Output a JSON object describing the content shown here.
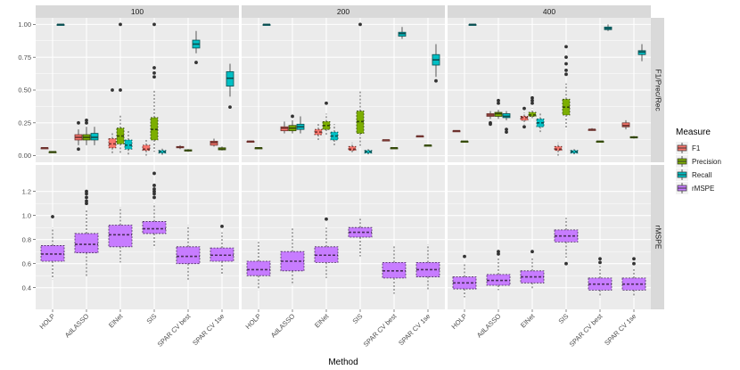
{
  "chart_data": {
    "type": "boxplot",
    "xlabel": "Method",
    "panels_x": [
      "100",
      "200",
      "400"
    ],
    "panels_y": [
      "F1/Prec/Rec",
      "rMSPE"
    ],
    "methods": [
      "HOLP",
      "AdLASSO",
      "ElNet",
      "SIS",
      "SPAR CV best",
      "SPAR CV 1se"
    ],
    "legend": {
      "title": "Measure",
      "items": [
        {
          "label": "F1",
          "color": "#F8766D"
        },
        {
          "label": "Precision",
          "color": "#7CAE00"
        },
        {
          "label": "Recall",
          "color": "#00BFC4"
        },
        {
          "label": "rMSPE",
          "color": "#C77CFF"
        }
      ]
    },
    "top_axis": {
      "ylim": [
        -0.05,
        1.05
      ],
      "ticks": [
        0.0,
        0.25,
        0.5,
        0.75,
        1.0
      ],
      "tick_labels": [
        "0.00",
        "0.25",
        "0.50",
        "0.75",
        "1.00"
      ]
    },
    "bottom_axis": {
      "ylim": [
        0.22,
        1.42
      ],
      "ticks": [
        0.4,
        0.6,
        0.8,
        1.0,
        1.2
      ],
      "tick_labels": [
        "0.4",
        "0.6",
        "0.8",
        "1.0",
        "1.2"
      ]
    },
    "top": {
      "100": {
        "F1": [
          [
            0.06,
            0.06,
            0.06,
            0.06,
            0.06,
            []
          ],
          [
            0.08,
            0.12,
            0.14,
            0.16,
            0.2,
            [
              0.25,
              0.05
            ]
          ],
          [
            0.02,
            0.06,
            0.09,
            0.13,
            0.18,
            [
              0.5
            ]
          ],
          [
            0.0,
            0.04,
            0.05,
            0.08,
            0.12,
            []
          ],
          [
            0.05,
            0.06,
            0.065,
            0.07,
            0.08,
            []
          ],
          [
            0.07,
            0.08,
            0.1,
            0.11,
            0.13,
            []
          ]
        ],
        "Precision": [
          [
            0.03,
            0.03,
            0.03,
            0.03,
            0.03,
            []
          ],
          [
            0.08,
            0.12,
            0.14,
            0.16,
            0.22,
            [
              0.27,
              0.25
            ]
          ],
          [
            0.02,
            0.09,
            0.15,
            0.21,
            0.31,
            [
              1.0,
              0.5
            ]
          ],
          [
            0.03,
            0.12,
            0.2,
            0.29,
            0.5,
            [
              1.0,
              0.67,
              0.63,
              0.6
            ]
          ],
          [
            0.03,
            0.035,
            0.04,
            0.045,
            0.05,
            []
          ],
          [
            0.04,
            0.045,
            0.05,
            0.06,
            0.07,
            []
          ]
        ],
        "Recall": [
          [
            1.0,
            1.0,
            1.0,
            1.0,
            1.0,
            []
          ],
          [
            0.08,
            0.12,
            0.14,
            0.17,
            0.22,
            []
          ],
          [
            0.0,
            0.05,
            0.08,
            0.12,
            0.2,
            []
          ],
          [
            0.0,
            0.02,
            0.03,
            0.04,
            0.06,
            []
          ],
          [
            0.78,
            0.82,
            0.85,
            0.88,
            0.95,
            [
              0.71
            ]
          ],
          [
            0.45,
            0.53,
            0.59,
            0.64,
            0.7,
            [
              0.37
            ]
          ]
        ]
      },
      "200": {
        "F1": [
          [
            0.11,
            0.11,
            0.11,
            0.11,
            0.11,
            []
          ],
          [
            0.17,
            0.19,
            0.21,
            0.22,
            0.26,
            []
          ],
          [
            0.12,
            0.16,
            0.18,
            0.2,
            0.25,
            []
          ],
          [
            0.02,
            0.04,
            0.05,
            0.07,
            0.1,
            []
          ],
          [
            0.12,
            0.12,
            0.12,
            0.12,
            0.12,
            []
          ],
          [
            0.15,
            0.15,
            0.15,
            0.15,
            0.15,
            []
          ]
        ],
        "Precision": [
          [
            0.06,
            0.06,
            0.06,
            0.06,
            0.06,
            []
          ],
          [
            0.17,
            0.19,
            0.21,
            0.23,
            0.27,
            [
              0.3
            ]
          ],
          [
            0.16,
            0.2,
            0.23,
            0.26,
            0.32,
            [
              0.4
            ]
          ],
          [
            0.06,
            0.17,
            0.26,
            0.34,
            0.5,
            [
              1.0
            ]
          ],
          [
            0.06,
            0.06,
            0.06,
            0.06,
            0.06,
            []
          ],
          [
            0.08,
            0.08,
            0.08,
            0.08,
            0.08,
            []
          ]
        ],
        "Recall": [
          [
            1.0,
            1.0,
            1.0,
            1.0,
            1.0,
            []
          ],
          [
            0.17,
            0.2,
            0.22,
            0.24,
            0.3,
            []
          ],
          [
            0.08,
            0.12,
            0.15,
            0.18,
            0.24,
            []
          ],
          [
            0.01,
            0.02,
            0.03,
            0.04,
            0.05,
            []
          ],
          [
            0.89,
            0.91,
            0.93,
            0.94,
            0.98,
            []
          ],
          [
            0.6,
            0.69,
            0.73,
            0.77,
            0.85,
            [
              0.57
            ]
          ]
        ]
      },
      "400": {
        "F1": [
          [
            0.19,
            0.19,
            0.19,
            0.19,
            0.19,
            []
          ],
          [
            0.28,
            0.3,
            0.31,
            0.32,
            0.34,
            [
              0.24,
              0.25
            ]
          ],
          [
            0.24,
            0.27,
            0.29,
            0.3,
            0.33,
            [
              0.36,
              0.22
            ]
          ],
          [
            0.0,
            0.04,
            0.05,
            0.07,
            0.1,
            []
          ],
          [
            0.19,
            0.195,
            0.2,
            0.2,
            0.21,
            []
          ],
          [
            0.2,
            0.22,
            0.23,
            0.25,
            0.27,
            []
          ]
        ],
        "Precision": [
          [
            0.11,
            0.11,
            0.11,
            0.11,
            0.11,
            []
          ],
          [
            0.28,
            0.3,
            0.32,
            0.33,
            0.35,
            [
              0.4,
              0.42
            ]
          ],
          [
            0.28,
            0.3,
            0.31,
            0.33,
            0.36,
            [
              0.4,
              0.42,
              0.44
            ]
          ],
          [
            0.2,
            0.31,
            0.37,
            0.43,
            0.55,
            [
              0.83,
              0.75,
              0.7,
              0.65,
              0.62
            ]
          ],
          [
            0.11,
            0.11,
            0.11,
            0.11,
            0.11,
            []
          ],
          [
            0.13,
            0.135,
            0.14,
            0.145,
            0.15,
            []
          ]
        ],
        "Recall": [
          [
            1.0,
            1.0,
            1.0,
            1.0,
            1.0,
            []
          ],
          [
            0.27,
            0.29,
            0.3,
            0.32,
            0.34,
            [
              0.18,
              0.2
            ]
          ],
          [
            0.18,
            0.22,
            0.25,
            0.28,
            0.33,
            []
          ],
          [
            0.01,
            0.02,
            0.03,
            0.04,
            0.05,
            []
          ],
          [
            0.95,
            0.96,
            0.97,
            0.98,
            1.0,
            []
          ],
          [
            0.72,
            0.77,
            0.79,
            0.8,
            0.85,
            []
          ]
        ]
      }
    },
    "bottom": {
      "100": [
        [
          0.47,
          0.62,
          0.68,
          0.75,
          0.9,
          [
            0.99
          ]
        ],
        [
          0.49,
          0.69,
          0.76,
          0.85,
          1.05,
          [
            1.1,
            1.12,
            1.15,
            1.18,
            1.2
          ]
        ],
        [
          0.61,
          0.74,
          0.84,
          0.92,
          1.07,
          []
        ],
        [
          0.73,
          0.85,
          0.89,
          0.95,
          1.1,
          [
            1.15,
            1.18,
            1.2,
            1.22,
            1.25,
            1.35
          ]
        ],
        [
          0.46,
          0.6,
          0.66,
          0.74,
          0.92,
          []
        ],
        [
          0.51,
          0.62,
          0.67,
          0.73,
          0.86,
          [
            0.91
          ]
        ]
      ],
      "200": [
        [
          0.38,
          0.5,
          0.55,
          0.62,
          0.78,
          []
        ],
        [
          0.42,
          0.54,
          0.62,
          0.7,
          0.9,
          []
        ],
        [
          0.48,
          0.61,
          0.67,
          0.74,
          0.9,
          [
            0.97
          ]
        ],
        [
          0.66,
          0.82,
          0.86,
          0.9,
          0.99,
          []
        ],
        [
          0.35,
          0.48,
          0.54,
          0.61,
          0.75,
          []
        ],
        [
          0.38,
          0.49,
          0.55,
          0.61,
          0.76,
          []
        ]
      ],
      "400": [
        [
          0.32,
          0.39,
          0.44,
          0.49,
          0.61,
          [
            0.66
          ]
        ],
        [
          0.38,
          0.42,
          0.46,
          0.51,
          0.65,
          [
            0.68,
            0.7
          ]
        ],
        [
          0.39,
          0.44,
          0.49,
          0.54,
          0.66,
          [
            0.7
          ]
        ],
        [
          0.65,
          0.78,
          0.83,
          0.88,
          0.98,
          [
            0.6
          ]
        ],
        [
          0.32,
          0.38,
          0.43,
          0.48,
          0.58,
          [
            0.61,
            0.64
          ]
        ],
        [
          0.32,
          0.38,
          0.43,
          0.48,
          0.57,
          [
            0.6,
            0.64
          ]
        ]
      ]
    }
  }
}
